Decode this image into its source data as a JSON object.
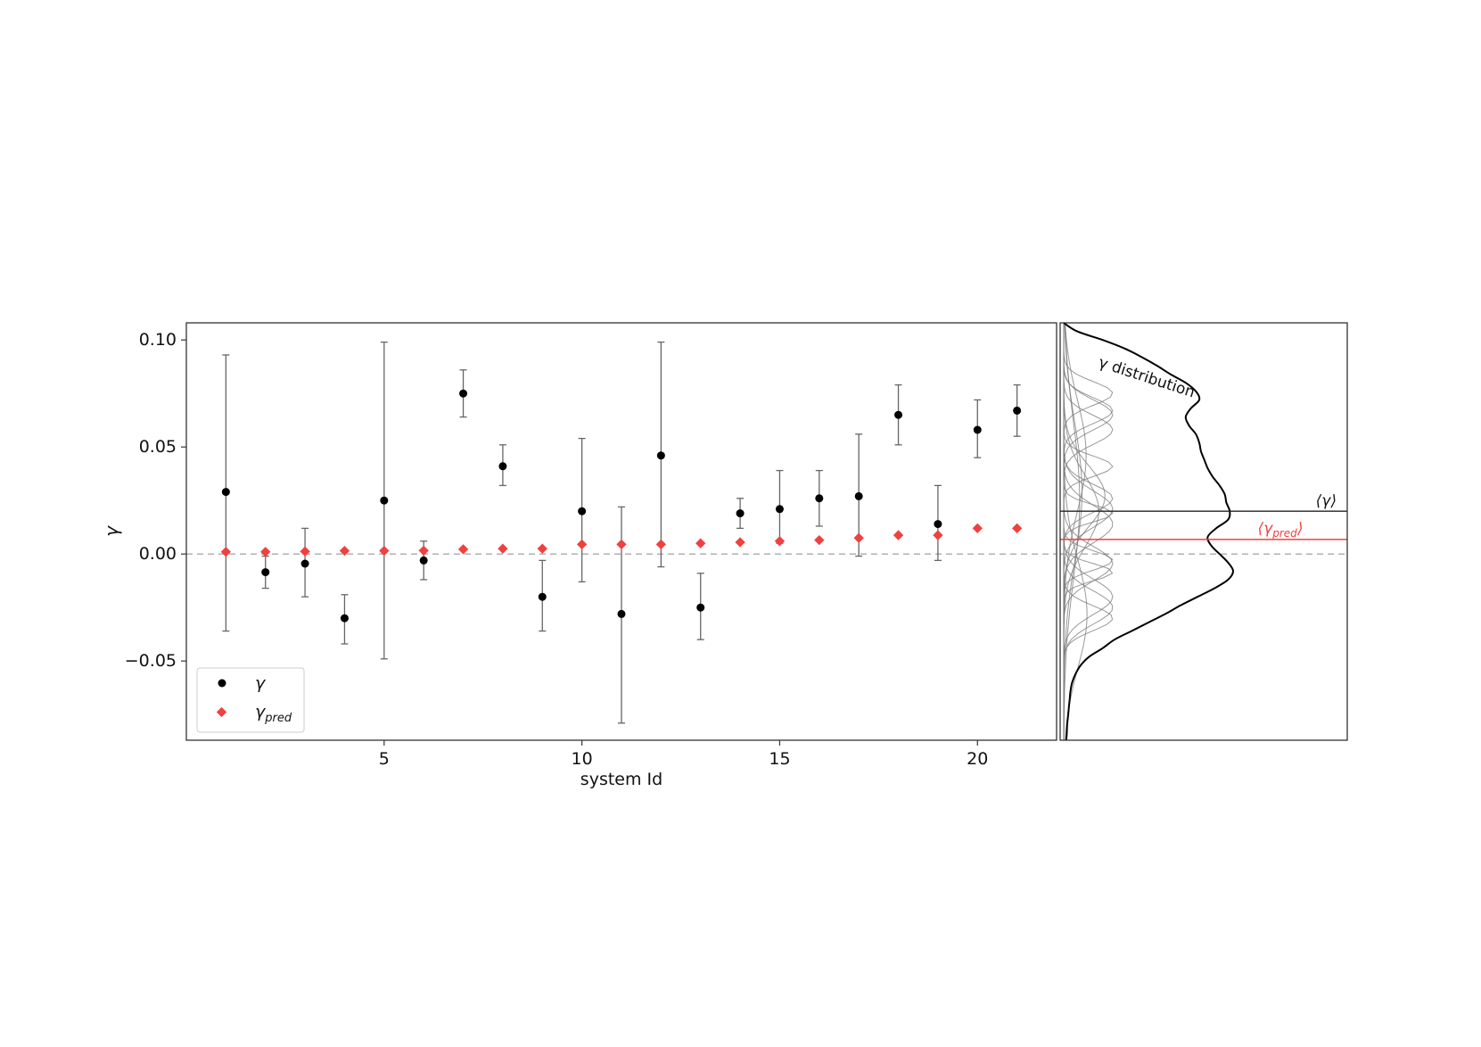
{
  "chart_data": [
    {
      "type": "scatter",
      "xlabel": "system Id",
      "ylabel": "γ",
      "xlim": [
        0,
        22
      ],
      "ylim": [
        -0.087,
        0.108
      ],
      "xticks": [
        5,
        10,
        15,
        20
      ],
      "xtick_labels": [
        "5",
        "10",
        "15",
        "20"
      ],
      "yticks": [
        -0.05,
        0.0,
        0.05,
        0.1
      ],
      "ytick_labels": [
        "−0.05",
        "0.00",
        "0.05",
        "0.10"
      ],
      "zero_line": true,
      "grid": false,
      "legend_position": "lower-left",
      "legend": [
        {
          "base": "γ",
          "sub": "",
          "marker": "circle",
          "color": "#000000"
        },
        {
          "base": "γ",
          "sub": "pred",
          "marker": "diamond",
          "color": "#f04040"
        }
      ],
      "series": [
        {
          "marker": "circle",
          "color": "#000000",
          "x": [
            1,
            2,
            3,
            4,
            5,
            6,
            7,
            8,
            9,
            10,
            11,
            12,
            13,
            14,
            15,
            16,
            17,
            18,
            19,
            20,
            21
          ],
          "y": [
            0.029,
            -0.0085,
            -0.0045,
            -0.03,
            0.025,
            -0.003,
            0.075,
            0.041,
            -0.02,
            0.02,
            -0.028,
            0.046,
            -0.025,
            0.019,
            0.021,
            0.026,
            0.027,
            0.065,
            0.014,
            0.058,
            0.067
          ],
          "err_low": [
            -0.036,
            -0.016,
            -0.02,
            -0.042,
            -0.049,
            -0.012,
            0.064,
            0.032,
            -0.036,
            -0.013,
            -0.079,
            -0.006,
            -0.04,
            0.012,
            0.005,
            0.013,
            -0.001,
            0.051,
            -0.003,
            0.045,
            0.055
          ],
          "err_high": [
            0.093,
            -0.001,
            0.012,
            -0.019,
            0.099,
            0.006,
            0.086,
            0.051,
            -0.003,
            0.054,
            0.022,
            0.099,
            -0.009,
            0.026,
            0.039,
            0.039,
            0.056,
            0.079,
            0.032,
            0.072,
            0.079
          ]
        },
        {
          "marker": "diamond",
          "color": "#f04040",
          "x": [
            1,
            2,
            3,
            4,
            5,
            6,
            7,
            8,
            9,
            10,
            11,
            12,
            13,
            14,
            15,
            16,
            17,
            18,
            19,
            20,
            21
          ],
          "y": [
            0.001,
            0.001,
            0.0012,
            0.0015,
            0.0015,
            0.0016,
            0.0022,
            0.0025,
            0.0025,
            0.0045,
            0.0045,
            0.0045,
            0.005,
            0.0055,
            0.006,
            0.0065,
            0.0075,
            0.0088,
            0.0088,
            0.012,
            0.012
          ]
        }
      ]
    },
    {
      "type": "line",
      "annotation": "γ distribution",
      "ylim": [
        -0.087,
        0.108
      ],
      "hlines": [
        {
          "label": "⟨γ⟩",
          "y": 0.02,
          "color": "#000000"
        },
        {
          "label": "⟨γpred⟩",
          "label_base": "⟨γ",
          "label_sub": "pred",
          "label_close": "⟩",
          "y": 0.0068,
          "color": "#f04040"
        }
      ],
      "distribution_curve": {
        "y": [
          0.108,
          0.104,
          0.1,
          0.096,
          0.092,
          0.088,
          0.084,
          0.08,
          0.076,
          0.072,
          0.068,
          0.064,
          0.06,
          0.056,
          0.052,
          0.048,
          0.044,
          0.04,
          0.036,
          0.032,
          0.028,
          0.024,
          0.02,
          0.016,
          0.012,
          0.008,
          0.004,
          0.0,
          -0.004,
          -0.008,
          -0.012,
          -0.016,
          -0.02,
          -0.024,
          -0.028,
          -0.032,
          -0.036,
          -0.04,
          -0.044,
          -0.048,
          -0.052,
          -0.056,
          -0.06,
          -0.064,
          -0.068,
          -0.072,
          -0.076,
          -0.08,
          -0.084,
          -0.087
        ],
        "density": [
          0.0,
          0.08,
          0.23,
          0.36,
          0.46,
          0.55,
          0.63,
          0.72,
          0.78,
          0.8,
          0.75,
          0.72,
          0.74,
          0.78,
          0.8,
          0.81,
          0.83,
          0.85,
          0.88,
          0.92,
          0.95,
          0.96,
          0.98,
          0.97,
          0.9,
          0.85,
          0.87,
          0.92,
          0.97,
          1.0,
          0.97,
          0.89,
          0.79,
          0.69,
          0.6,
          0.5,
          0.4,
          0.3,
          0.23,
          0.15,
          0.1,
          0.07,
          0.05,
          0.04,
          0.035,
          0.03,
          0.025,
          0.02,
          0.018,
          0.015
        ]
      }
    }
  ]
}
